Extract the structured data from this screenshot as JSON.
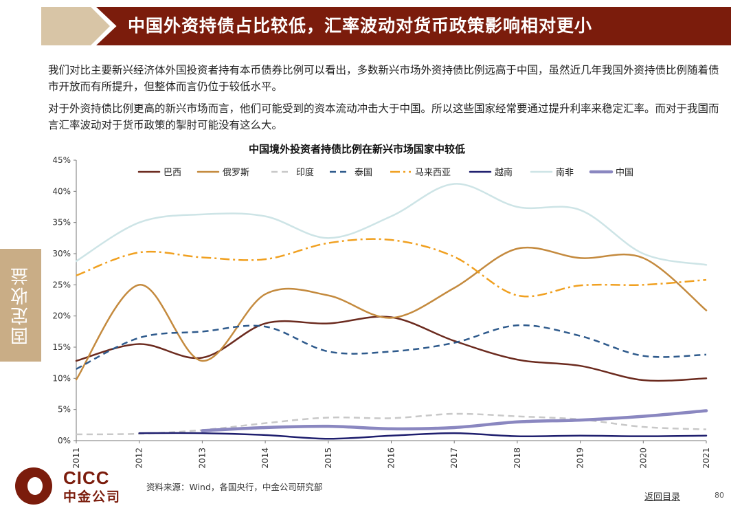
{
  "header": {
    "title": "中国外资持债占比较低，汇率波动对货币政策影响相对更小"
  },
  "paragraphs": [
    "我们对比主要新兴经济体外国投资者持有本币债券比例可以看出，多数新兴市场外资持债比例远高于中国，虽然近几年我国外资持债比例随着债市开放而有所提升，但整体而言仍位于较低水平。",
    "对于外资持债比例更高的新兴市场而言，他们可能受到的资本流动冲击大于中国。所以这些国家经常要通过提升利率来稳定汇率。而对于我国而言汇率波动对于货币政策的掣肘可能没有这么大。"
  ],
  "side_tab": {
    "label": "固定收益"
  },
  "chart_data": {
    "type": "line",
    "title": "中国境外投资者持债比例在新兴市场国家中较低",
    "xlabel": "",
    "ylabel": "",
    "ylim": [
      0,
      45
    ],
    "y_ticks": [
      "0%",
      "5%",
      "10%",
      "15%",
      "20%",
      "25%",
      "30%",
      "35%",
      "40%",
      "45%"
    ],
    "x": [
      "2011",
      "2012",
      "2013",
      "2014",
      "2015",
      "2016",
      "2017",
      "2018",
      "2019",
      "2020",
      "2021"
    ],
    "legend_position": "top",
    "series": [
      {
        "name": "巴西",
        "color": "#6b2a1e",
        "dash": "solid",
        "values": [
          12.8,
          15.5,
          13.3,
          18.8,
          18.8,
          19.8,
          16.0,
          13.0,
          12.0,
          9.7,
          10.0
        ]
      },
      {
        "name": "俄罗斯",
        "color": "#c48a3e",
        "dash": "solid",
        "values": [
          9.8,
          25.0,
          12.8,
          23.5,
          23.3,
          19.7,
          24.5,
          30.8,
          29.3,
          29.3,
          20.9
        ]
      },
      {
        "name": "印度",
        "color": "#c8c8c8",
        "dash": "dash",
        "values": [
          1.0,
          1.1,
          1.7,
          2.8,
          3.7,
          3.6,
          4.3,
          3.9,
          3.4,
          2.2,
          1.8
        ]
      },
      {
        "name": "泰国",
        "color": "#2e5a8c",
        "dash": "dash",
        "values": [
          11.5,
          16.5,
          17.5,
          18.3,
          14.3,
          14.3,
          15.7,
          18.5,
          16.8,
          13.6,
          13.8
        ]
      },
      {
        "name": "马来西亚",
        "color": "#f0a020",
        "dash": "dashdot",
        "values": [
          26.5,
          30.2,
          29.4,
          29.1,
          31.7,
          32.2,
          29.5,
          23.3,
          24.9,
          25.0,
          25.8
        ]
      },
      {
        "name": "越南",
        "color": "#1f1f6e",
        "dash": "solid",
        "values": [
          null,
          1.2,
          1.2,
          0.9,
          0.3,
          0.8,
          1.2,
          0.7,
          0.8,
          0.7,
          0.8
        ]
      },
      {
        "name": "南非",
        "color": "#cde4e6",
        "dash": "solid",
        "values": [
          28.8,
          35.0,
          36.3,
          36.0,
          32.5,
          36.0,
          41.2,
          37.5,
          37.0,
          30.0,
          28.2
        ]
      },
      {
        "name": "中国",
        "color": "#8a87c0",
        "dash": "thick",
        "values": [
          null,
          null,
          1.6,
          2.1,
          2.3,
          1.9,
          2.1,
          3.0,
          3.3,
          3.9,
          4.8
        ]
      }
    ]
  },
  "footer": {
    "logo_en": "CICC",
    "logo_cn": "中金公司",
    "source": "资料来源：Wind，各国央行，中金公司研究部",
    "back_link": "返回目录",
    "page_number": "80"
  }
}
